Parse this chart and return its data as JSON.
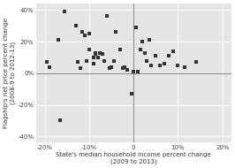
{
  "xlabel": "State's median household income percent change\n(2009 to 2013)",
  "ylabel": "Flagship's net price percent change\n(2008-9 to 2012-13)",
  "xlim": [
    -0.22,
    0.22
  ],
  "ylim": [
    -0.44,
    0.44
  ],
  "xticks": [
    -0.2,
    -0.1,
    0.0,
    0.1,
    0.2
  ],
  "yticks": [
    -0.4,
    -0.2,
    0.0,
    0.2,
    0.4
  ],
  "outer_bg": "#ffffff",
  "plot_bg": "#e5e5e5",
  "grid_color": "#ffffff",
  "zero_line_color": "#888888",
  "scatter_color": "#333333",
  "marker_size": 5,
  "label_fontsize": 5.0,
  "tick_fontsize": 5.0,
  "scatter_x": [
    -0.195,
    -0.19,
    -0.155,
    -0.17,
    -0.165,
    -0.13,
    -0.125,
    -0.12,
    -0.115,
    -0.11,
    -0.105,
    -0.1,
    -0.1,
    -0.09,
    -0.09,
    -0.085,
    -0.085,
    -0.08,
    -0.075,
    -0.07,
    -0.065,
    -0.06,
    -0.055,
    -0.05,
    -0.045,
    -0.04,
    -0.03,
    -0.025,
    -0.02,
    -0.015,
    -0.005,
    0.0,
    0.005,
    0.01,
    0.015,
    0.02,
    0.025,
    0.03,
    0.035,
    0.04,
    0.05,
    0.06,
    0.07,
    0.08,
    0.09,
    0.1,
    0.115,
    0.14
  ],
  "scatter_y": [
    0.07,
    0.04,
    0.39,
    0.21,
    -0.3,
    0.3,
    0.07,
    0.03,
    0.26,
    0.24,
    0.08,
    0.25,
    0.15,
    0.1,
    0.06,
    0.13,
    0.12,
    0.1,
    0.13,
    0.12,
    0.08,
    0.36,
    0.03,
    0.04,
    0.08,
    0.26,
    0.15,
    0.03,
    0.04,
    0.02,
    -0.13,
    0.01,
    0.29,
    0.01,
    0.15,
    0.2,
    0.13,
    0.08,
    0.21,
    0.05,
    0.11,
    0.05,
    0.06,
    0.11,
    0.14,
    0.05,
    0.04,
    0.07
  ]
}
